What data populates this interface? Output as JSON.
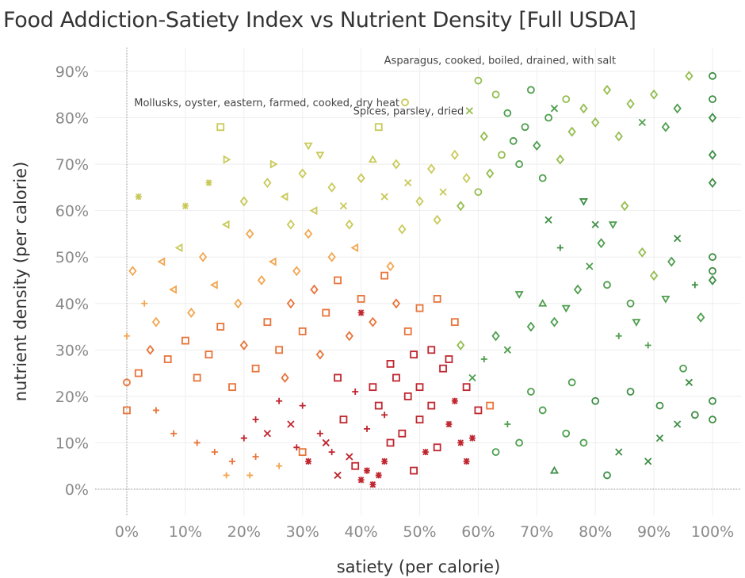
{
  "title": "Food Addiction-Satiety Index vs Nutrient Density [Full USDA]",
  "chart_data": {
    "type": "scatter",
    "title": "Food Addiction-Satiety Index vs Nutrient Density [Full USDA]",
    "xlabel": "satiety (per calorie)",
    "ylabel": "nutrient density (per calorie)",
    "xlim": [
      -6,
      106
    ],
    "ylim": [
      -6,
      94
    ],
    "xticks": [
      "0%",
      "10%",
      "20%",
      "30%",
      "40%",
      "50%",
      "60%",
      "70%",
      "80%",
      "90%",
      "100%"
    ],
    "yticks": [
      "0%",
      "10%",
      "20%",
      "30%",
      "40%",
      "50%",
      "60%",
      "70%",
      "80%",
      "90%"
    ],
    "grid": true,
    "legend": "none",
    "palette": [
      "#c0262f",
      "#e8743a",
      "#f2a650",
      "#c9c95a",
      "#94bd4f",
      "#4e9e4e",
      "#3f8f46"
    ],
    "shapes_note_keys": [
      "o",
      "s",
      "d",
      "x",
      "+",
      "*",
      "t",
      "v",
      "<",
      ">"
    ],
    "points": [
      [
        40,
        2,
        "*",
        0
      ],
      [
        41,
        4,
        "*",
        0
      ],
      [
        42,
        1,
        "*",
        0
      ],
      [
        39,
        5,
        "s",
        0
      ],
      [
        43,
        3,
        "*",
        0
      ],
      [
        38,
        7,
        "x",
        0
      ],
      [
        44,
        6,
        "*",
        0
      ],
      [
        36,
        3,
        "x",
        0
      ],
      [
        35,
        8,
        "+",
        0
      ],
      [
        45,
        10,
        "s",
        0
      ],
      [
        47,
        12,
        "s",
        0
      ],
      [
        50,
        15,
        "s",
        0
      ],
      [
        52,
        18,
        "s",
        0
      ],
      [
        55,
        14,
        "*",
        0
      ],
      [
        57,
        10,
        "*",
        0
      ],
      [
        58,
        6,
        "*",
        0
      ],
      [
        53,
        9,
        "s",
        0
      ],
      [
        48,
        20,
        "s",
        0
      ],
      [
        46,
        24,
        "s",
        0
      ],
      [
        50,
        22,
        "s",
        0
      ],
      [
        54,
        26,
        "s",
        0
      ],
      [
        58,
        22,
        "s",
        0
      ],
      [
        60,
        17,
        "s",
        0
      ],
      [
        56,
        19,
        "*",
        0
      ],
      [
        44,
        16,
        "+",
        0
      ],
      [
        41,
        13,
        "+",
        0
      ],
      [
        37,
        15,
        "s",
        0
      ],
      [
        33,
        12,
        "+",
        0
      ],
      [
        30,
        18,
        "+",
        0
      ],
      [
        28,
        14,
        "x",
        0
      ],
      [
        26,
        19,
        "+",
        0
      ],
      [
        24,
        12,
        "x",
        0
      ],
      [
        22,
        15,
        "+",
        0
      ],
      [
        20,
        11,
        "+",
        0
      ],
      [
        31,
        6,
        "*",
        0
      ],
      [
        34,
        10,
        "x",
        0
      ],
      [
        29,
        9,
        "+",
        0
      ],
      [
        49,
        4,
        "s",
        0
      ],
      [
        51,
        8,
        "*",
        0
      ],
      [
        43,
        18,
        "s",
        0
      ],
      [
        45,
        27,
        "s",
        0
      ],
      [
        52,
        30,
        "s",
        0
      ],
      [
        49,
        29,
        "s",
        0
      ],
      [
        42,
        22,
        "s",
        0
      ],
      [
        39,
        21,
        "+",
        0
      ],
      [
        36,
        24,
        "s",
        0
      ],
      [
        59,
        11,
        "*",
        0
      ],
      [
        62,
        18,
        "s",
        1
      ],
      [
        40,
        38,
        "*",
        0
      ],
      [
        55,
        28,
        "s",
        0
      ],
      [
        5,
        17,
        "+",
        1
      ],
      [
        8,
        12,
        "+",
        1
      ],
      [
        12,
        10,
        "+",
        1
      ],
      [
        15,
        8,
        "+",
        1
      ],
      [
        18,
        6,
        "+",
        1
      ],
      [
        22,
        7,
        "+",
        1
      ],
      [
        26,
        5,
        "+",
        2
      ],
      [
        30,
        8,
        "s",
        1
      ],
      [
        17,
        3,
        "+",
        2
      ],
      [
        21,
        3,
        "+",
        2
      ],
      [
        0,
        23,
        "o",
        1
      ],
      [
        0,
        17,
        "s",
        1
      ],
      [
        2,
        25,
        "s",
        1
      ],
      [
        4,
        30,
        "d",
        1
      ],
      [
        7,
        28,
        "s",
        1
      ],
      [
        10,
        32,
        "s",
        1
      ],
      [
        12,
        24,
        "s",
        1
      ],
      [
        14,
        29,
        "s",
        1
      ],
      [
        16,
        35,
        "s",
        1
      ],
      [
        18,
        22,
        "s",
        1
      ],
      [
        20,
        31,
        "d",
        1
      ],
      [
        22,
        26,
        "s",
        1
      ],
      [
        24,
        36,
        "s",
        1
      ],
      [
        26,
        30,
        "s",
        1
      ],
      [
        28,
        40,
        "d",
        1
      ],
      [
        30,
        34,
        "s",
        1
      ],
      [
        32,
        43,
        "d",
        1
      ],
      [
        34,
        38,
        "s",
        1
      ],
      [
        36,
        45,
        "s",
        1
      ],
      [
        38,
        33,
        "d",
        1
      ],
      [
        40,
        41,
        "s",
        1
      ],
      [
        42,
        36,
        "d",
        1
      ],
      [
        44,
        46,
        "s",
        1
      ],
      [
        46,
        40,
        "d",
        1
      ],
      [
        48,
        34,
        "s",
        1
      ],
      [
        50,
        39,
        "s",
        1
      ],
      [
        53,
        41,
        "s",
        1
      ],
      [
        56,
        36,
        "s",
        1
      ],
      [
        33,
        29,
        "d",
        1
      ],
      [
        27,
        24,
        "d",
        1
      ],
      [
        19,
        40,
        "d",
        2
      ],
      [
        15,
        44,
        "<",
        2
      ],
      [
        11,
        38,
        "d",
        2
      ],
      [
        8,
        43,
        "<",
        2
      ],
      [
        5,
        36,
        "d",
        2
      ],
      [
        3,
        40,
        "+",
        2
      ],
      [
        0,
        33,
        "+",
        2
      ],
      [
        1,
        47,
        "d",
        2
      ],
      [
        6,
        49,
        "<",
        2
      ],
      [
        13,
        50,
        "d",
        2
      ],
      [
        23,
        45,
        "d",
        2
      ],
      [
        25,
        49,
        "<",
        2
      ],
      [
        29,
        47,
        "d",
        2
      ],
      [
        35,
        50,
        "d",
        2
      ],
      [
        39,
        52,
        "<",
        2
      ],
      [
        31,
        55,
        "d",
        2
      ],
      [
        21,
        55,
        "d",
        2
      ],
      [
        17,
        57,
        "<",
        3
      ],
      [
        9,
        52,
        "<",
        3
      ],
      [
        45,
        48,
        "d",
        2
      ],
      [
        20,
        62,
        "d",
        3
      ],
      [
        24,
        66,
        "d",
        3
      ],
      [
        27,
        63,
        "<",
        3
      ],
      [
        30,
        68,
        "d",
        3
      ],
      [
        33,
        72,
        "v",
        3
      ],
      [
        35,
        65,
        "d",
        3
      ],
      [
        37,
        61,
        "x",
        3
      ],
      [
        40,
        67,
        "d",
        3
      ],
      [
        42,
        71,
        "t",
        3
      ],
      [
        44,
        63,
        "x",
        3
      ],
      [
        46,
        70,
        "d",
        3
      ],
      [
        48,
        66,
        "x",
        3
      ],
      [
        50,
        62,
        "d",
        3
      ],
      [
        52,
        69,
        "d",
        3
      ],
      [
        54,
        64,
        "x",
        3
      ],
      [
        56,
        72,
        "d",
        3
      ],
      [
        58,
        67,
        "d",
        3
      ],
      [
        31,
        74,
        "v",
        3
      ],
      [
        25,
        70,
        ">",
        3
      ],
      [
        17,
        71,
        ">",
        3
      ],
      [
        16,
        78,
        "s",
        3
      ],
      [
        43,
        78,
        "s",
        3
      ],
      [
        14,
        66,
        "*",
        3
      ],
      [
        10,
        61,
        "*",
        3
      ],
      [
        2,
        63,
        "*",
        3
      ],
      [
        38,
        57,
        "d",
        3
      ],
      [
        28,
        57,
        "d",
        3
      ],
      [
        32,
        60,
        "<",
        3
      ],
      [
        47,
        56,
        "d",
        3
      ],
      [
        53,
        58,
        "d",
        3
      ],
      [
        57,
        61,
        "d",
        4
      ],
      [
        60,
        64,
        "o",
        4
      ],
      [
        62,
        68,
        "d",
        4
      ],
      [
        64,
        72,
        "o",
        4
      ],
      [
        66,
        75,
        "o",
        5
      ],
      [
        68,
        78,
        "o",
        5
      ],
      [
        70,
        74,
        "d",
        5
      ],
      [
        72,
        80,
        "o",
        5
      ],
      [
        74,
        71,
        "d",
        4
      ],
      [
        76,
        77,
        "d",
        4
      ],
      [
        65,
        81,
        "o",
        5
      ],
      [
        61,
        76,
        "d",
        4
      ],
      [
        67,
        70,
        "o",
        5
      ],
      [
        71,
        67,
        "o",
        5
      ],
      [
        73,
        82,
        "x",
        5
      ],
      [
        63,
        85,
        "o",
        4
      ],
      [
        60,
        88,
        "o",
        4
      ],
      [
        69,
        86,
        "o",
        5
      ],
      [
        75,
        84,
        "o",
        4
      ],
      [
        78,
        82,
        "d",
        4
      ],
      [
        80,
        79,
        "d",
        4
      ],
      [
        82,
        86,
        "d",
        4
      ],
      [
        84,
        76,
        "d",
        4
      ],
      [
        86,
        83,
        "d",
        4
      ],
      [
        88,
        79,
        "x",
        5
      ],
      [
        90,
        85,
        "d",
        4
      ],
      [
        92,
        78,
        "d",
        5
      ],
      [
        94,
        82,
        "d",
        5
      ],
      [
        96,
        89,
        "d",
        4
      ],
      [
        100,
        89,
        "o",
        6
      ],
      [
        100,
        84,
        "o",
        6
      ],
      [
        100,
        80,
        "d",
        6
      ],
      [
        100,
        72,
        "d",
        6
      ],
      [
        100,
        66,
        "d",
        6
      ],
      [
        100,
        50,
        "o",
        6
      ],
      [
        100,
        47,
        "o",
        6
      ],
      [
        100,
        45,
        "d",
        6
      ],
      [
        98,
        37,
        "d",
        5
      ],
      [
        97,
        44,
        "+",
        6
      ],
      [
        96,
        23,
        "x",
        6
      ],
      [
        100,
        19,
        "o",
        6
      ],
      [
        100,
        15,
        "o",
        6
      ],
      [
        97,
        16,
        "o",
        6
      ],
      [
        95,
        26,
        "o",
        5
      ],
      [
        94,
        14,
        "x",
        6
      ],
      [
        91,
        18,
        "o",
        6
      ],
      [
        89,
        6,
        "x",
        6
      ],
      [
        86,
        21,
        "o",
        6
      ],
      [
        84,
        8,
        "x",
        6
      ],
      [
        82,
        3,
        "o",
        6
      ],
      [
        80,
        19,
        "o",
        6
      ],
      [
        78,
        10,
        "o",
        5
      ],
      [
        76,
        23,
        "o",
        5
      ],
      [
        75,
        12,
        "o",
        5
      ],
      [
        73,
        4,
        "t",
        6
      ],
      [
        71,
        17,
        "o",
        5
      ],
      [
        69,
        21,
        "o",
        5
      ],
      [
        67,
        10,
        "o",
        5
      ],
      [
        65,
        14,
        "+",
        5
      ],
      [
        63,
        8,
        "o",
        5
      ],
      [
        85,
        61,
        "d",
        4
      ],
      [
        83,
        57,
        "v",
        5
      ],
      [
        81,
        53,
        "d",
        5
      ],
      [
        79,
        48,
        "x",
        5
      ],
      [
        77,
        43,
        "d",
        5
      ],
      [
        75,
        39,
        "v",
        5
      ],
      [
        73,
        36,
        "d",
        5
      ],
      [
        71,
        40,
        "t",
        5
      ],
      [
        69,
        35,
        "d",
        5
      ],
      [
        67,
        42,
        "v",
        5
      ],
      [
        65,
        30,
        "x",
        5
      ],
      [
        63,
        33,
        "d",
        5
      ],
      [
        61,
        28,
        "+",
        5
      ],
      [
        59,
        24,
        "x",
        5
      ],
      [
        57,
        31,
        "d",
        4
      ],
      [
        88,
        51,
        "d",
        4
      ],
      [
        90,
        46,
        "d",
        4
      ],
      [
        92,
        41,
        "v",
        5
      ],
      [
        94,
        54,
        "x",
        6
      ],
      [
        87,
        36,
        "v",
        5
      ],
      [
        72,
        58,
        "x",
        6
      ],
      [
        74,
        52,
        "+",
        6
      ],
      [
        78,
        62,
        "v",
        6
      ],
      [
        80,
        57,
        "x",
        6
      ],
      [
        82,
        44,
        "o",
        5
      ],
      [
        84,
        33,
        "+",
        5
      ],
      [
        86,
        40,
        "o",
        5
      ],
      [
        89,
        31,
        "+",
        5
      ],
      [
        91,
        11,
        "x",
        6
      ],
      [
        93,
        49,
        "d",
        5
      ]
    ],
    "annotations": [
      {
        "label": "Asparagus, cooked, boiled, drained, with salt",
        "x": 83.5,
        "y": 92.5,
        "shape": "none",
        "color": 3
      },
      {
        "label": "Spices, parsley, dried",
        "x": 58.5,
        "y": 81.5,
        "shape": "x",
        "color": 4
      },
      {
        "label": "Mollusks, oyster, eastern, farmed, cooked, dry heat",
        "x": 47.5,
        "y": 83.3,
        "shape": "o",
        "color": 3
      }
    ]
  }
}
